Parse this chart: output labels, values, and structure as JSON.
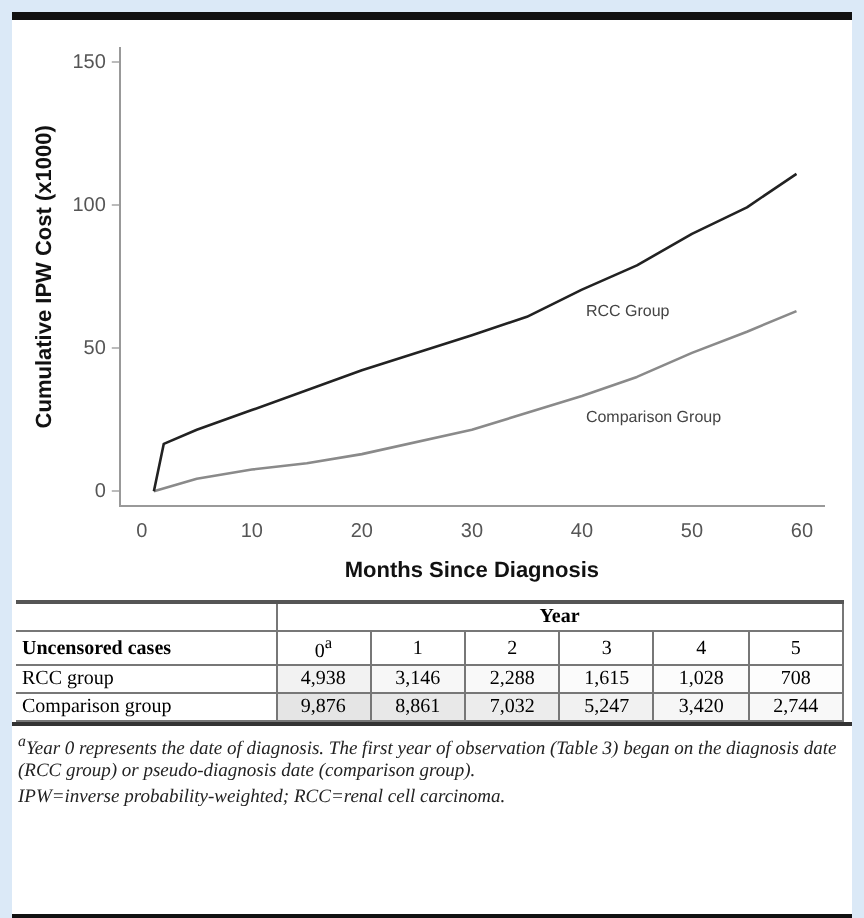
{
  "chart_data": [
    {
      "type": "line",
      "xlabel": "Months Since Diagnosis",
      "ylabel": "Cumulative IPW Cost (x1000)",
      "xlim": [
        -2,
        62
      ],
      "xticks": [
        0,
        10,
        20,
        30,
        40,
        50,
        60
      ],
      "ylim": [
        -5,
        155
      ],
      "yticks": [
        0,
        50,
        100,
        150
      ],
      "grid": false,
      "legend": false,
      "marker": "none",
      "line_style": "solid",
      "series": [
        {
          "name": "RCC Group",
          "color": "#222222",
          "x": [
            1.1,
            2,
            5,
            10,
            20,
            30,
            35,
            40,
            45,
            50,
            55,
            59.5
          ],
          "values": [
            0,
            16.6,
            21.5,
            28.4,
            42.3,
            54.6,
            61,
            70.5,
            79,
            90,
            99.3,
            111
          ]
        },
        {
          "name": "Comparison Group",
          "color": "#8a8a8a",
          "x": [
            1.1,
            5,
            10,
            15,
            20,
            30,
            40,
            45,
            50,
            55,
            59.5
          ],
          "values": [
            0,
            4.4,
            7.6,
            9.8,
            13,
            21.5,
            33.3,
            40,
            48.4,
            55.8,
            63
          ]
        }
      ]
    },
    {
      "type": "heatmap",
      "title": "Year",
      "ylabel": "Uncensored cases",
      "categories": [
        "0$^{a}$",
        "1",
        "2",
        "3",
        "4",
        "5"
      ],
      "y_categories": [
        "RCC group",
        "Comparison group"
      ],
      "cells": [
        [
          4938,
          3146,
          2288,
          1615,
          1028,
          708
        ],
        [
          9876,
          8861,
          7032,
          5247,
          3420,
          2744
        ]
      ],
      "cell_labels": [
        [
          "4,938",
          "3,146",
          "2,288",
          "1,615",
          "1,028",
          "708"
        ],
        [
          "9,876",
          "8,861",
          "7,032",
          "5,247",
          "3,420",
          "2,744"
        ]
      ],
      "annotations": [
        "$^{a}$Year 0 represents the date of diagnosis. The first year of observation (Table 3) began on the diagnosis date (RCC group) or pseudo-diagnosis date (comparison group).",
        "IPW=inverse probability-weighted; RCC=renal cell carcinoma."
      ]
    }
  ]
}
